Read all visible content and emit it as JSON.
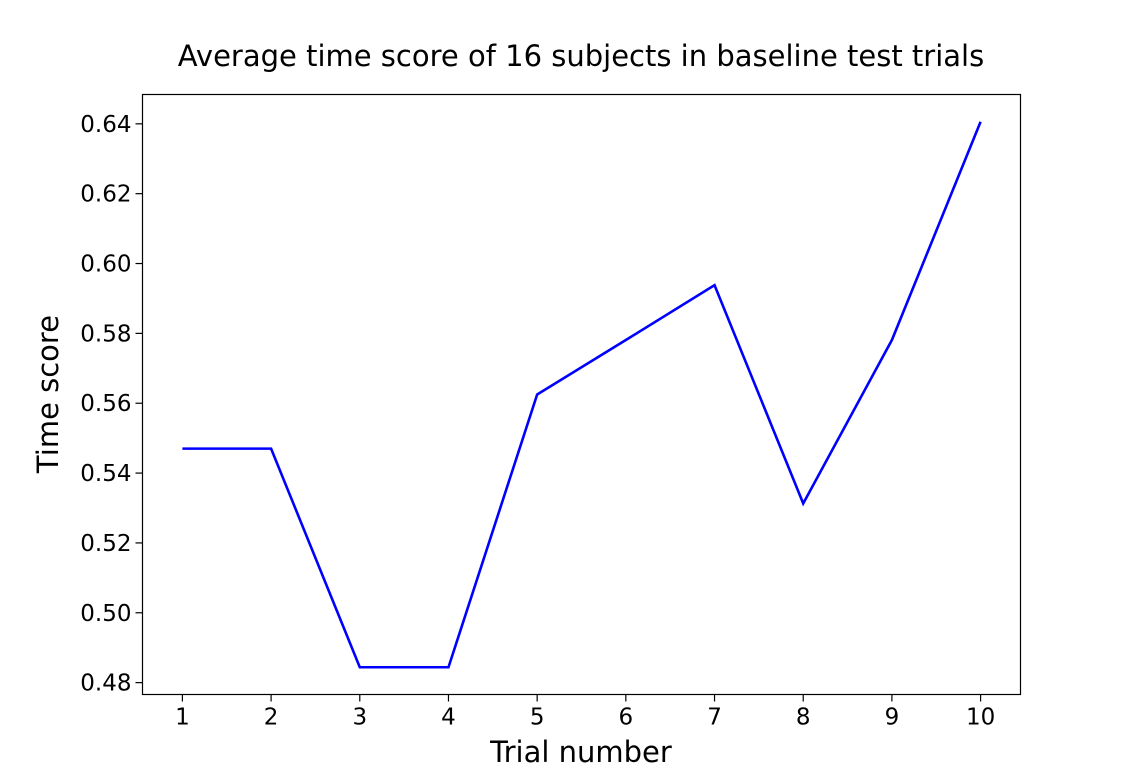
{
  "chart_data": {
    "type": "line",
    "title": "Average time score of 16 subjects in baseline test trials",
    "xlabel": "Trial number",
    "ylabel": "Time score",
    "x": [
      1,
      2,
      3,
      4,
      5,
      6,
      7,
      8,
      9,
      10
    ],
    "series": [
      {
        "values": [
          0.547,
          0.547,
          0.4844,
          0.4844,
          0.5625,
          0.5781,
          0.5938,
          0.5313,
          0.5781,
          0.6406
        ],
        "color": "#0000ff"
      }
    ],
    "xticks": [
      1,
      2,
      3,
      4,
      5,
      6,
      7,
      8,
      9,
      10
    ],
    "xtick_labels": [
      "1",
      "2",
      "3",
      "4",
      "5",
      "6",
      "7",
      "8",
      "9",
      "10"
    ],
    "yticks": [
      0.48,
      0.5,
      0.52,
      0.54,
      0.56,
      0.58,
      0.6,
      0.62,
      0.64
    ],
    "ytick_labels": [
      "0.48",
      "0.50",
      "0.52",
      "0.54",
      "0.56",
      "0.58",
      "0.60",
      "0.62",
      "0.64"
    ],
    "xlim": [
      0.55,
      10.45
    ],
    "ylim": [
      0.4766,
      0.6484
    ],
    "grid": false,
    "legend": "none"
  }
}
